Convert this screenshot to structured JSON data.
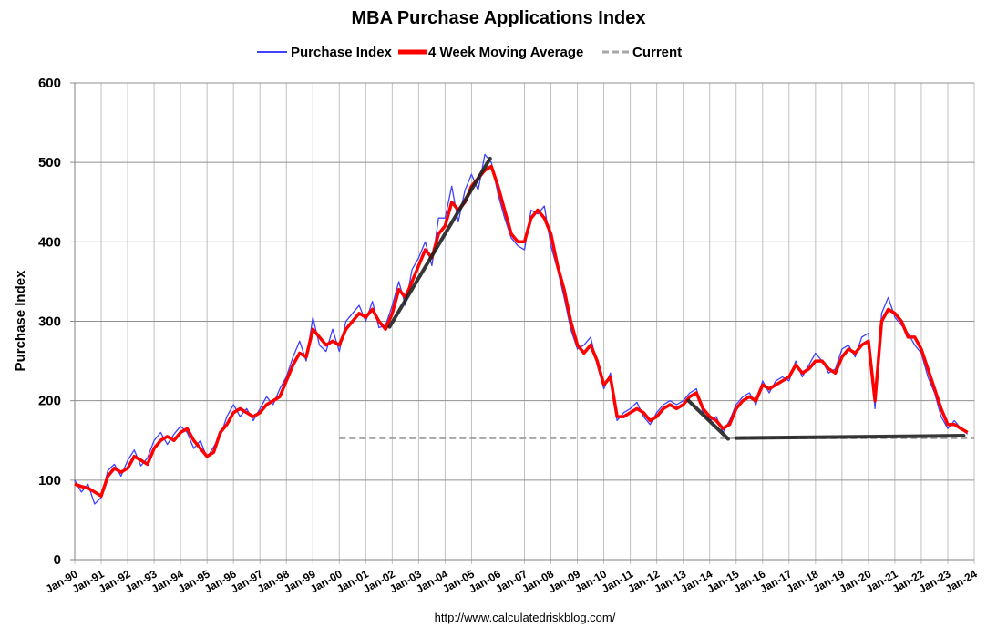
{
  "chart_data": {
    "type": "line",
    "title": "MBA Purchase Applications Index",
    "ylabel": "Purchase Index",
    "xlabel": "",
    "source": "http://www.calculatedriskblog.com/",
    "ylim": [
      0,
      600
    ],
    "yticks": [
      0,
      100,
      200,
      300,
      400,
      500,
      600
    ],
    "xlim": [
      1990,
      2024
    ],
    "xtick_labels": [
      "Jan-90",
      "Jan-91",
      "Jan-92",
      "Jan-93",
      "Jan-94",
      "Jan-95",
      "Jan-96",
      "Jan-97",
      "Jan-98",
      "Jan-99",
      "Jan-00",
      "Jan-01",
      "Jan-02",
      "Jan-03",
      "Jan-04",
      "Jan-05",
      "Jan-06",
      "Jan-07",
      "Jan-08",
      "Jan-09",
      "Jan-10",
      "Jan-11",
      "Jan-12",
      "Jan-13",
      "Jan-14",
      "Jan-15",
      "Jan-16",
      "Jan-17",
      "Jan-18",
      "Jan-19",
      "Jan-20",
      "Jan-21",
      "Jan-22",
      "Jan-23",
      "Jan-24"
    ],
    "grid": true,
    "legend_position": "top",
    "x_start": 1990,
    "x_step_years": 0.25,
    "series": [
      {
        "name": "Purchase Index",
        "color": "#4040ff",
        "values": [
          100,
          85,
          95,
          70,
          78,
          112,
          120,
          105,
          125,
          138,
          118,
          128,
          150,
          160,
          145,
          158,
          168,
          160,
          140,
          150,
          128,
          142,
          155,
          180,
          195,
          180,
          190,
          175,
          190,
          205,
          195,
          215,
          230,
          255,
          275,
          250,
          305,
          270,
          262,
          290,
          262,
          300,
          310,
          320,
          300,
          325,
          292,
          295,
          320,
          350,
          320,
          365,
          380,
          400,
          370,
          430,
          430,
          470,
          425,
          465,
          485,
          465,
          510,
          500,
          460,
          430,
          405,
          395,
          390,
          440,
          435,
          445,
          395,
          365,
          330,
          290,
          265,
          270,
          280,
          245,
          215,
          235,
          175,
          185,
          190,
          198,
          180,
          170,
          185,
          195,
          200,
          195,
          200,
          210,
          215,
          185,
          175,
          180,
          160,
          175,
          195,
          205,
          210,
          195,
          225,
          210,
          225,
          230,
          225,
          250,
          230,
          245,
          260,
          250,
          235,
          240,
          265,
          270,
          255,
          280,
          285,
          190,
          310,
          330,
          305,
          295,
          285,
          270,
          260,
          230,
          210,
          180,
          165,
          175,
          165,
          158
        ]
      },
      {
        "name": "4 Week Moving Average",
        "color": "#ff0000",
        "values": [
          95,
          92,
          90,
          85,
          80,
          105,
          115,
          110,
          115,
          130,
          125,
          120,
          140,
          150,
          155,
          150,
          160,
          165,
          150,
          140,
          130,
          135,
          160,
          170,
          185,
          190,
          185,
          180,
          185,
          195,
          200,
          205,
          225,
          245,
          260,
          255,
          290,
          280,
          270,
          275,
          270,
          290,
          300,
          310,
          305,
          315,
          300,
          290,
          310,
          340,
          330,
          350,
          370,
          390,
          380,
          410,
          420,
          450,
          440,
          450,
          470,
          480,
          490,
          495,
          470,
          440,
          410,
          400,
          400,
          430,
          440,
          430,
          410,
          370,
          340,
          300,
          270,
          260,
          270,
          250,
          220,
          230,
          180,
          180,
          185,
          190,
          185,
          175,
          180,
          190,
          195,
          190,
          195,
          205,
          210,
          190,
          180,
          175,
          165,
          170,
          190,
          200,
          205,
          200,
          220,
          215,
          220,
          225,
          230,
          245,
          235,
          240,
          250,
          250,
          240,
          235,
          255,
          265,
          260,
          270,
          275,
          200,
          300,
          315,
          310,
          300,
          280,
          280,
          265,
          240,
          215,
          190,
          170,
          170,
          165,
          160
        ]
      },
      {
        "name": "Current",
        "color": "#a6a6a6",
        "value": 153,
        "from": 2000,
        "to": 2024
      }
    ],
    "trend_lines": [
      {
        "from": [
          2001.9,
          293
        ],
        "to": [
          2005.7,
          505
        ]
      },
      {
        "from": [
          2013.2,
          200
        ],
        "to": [
          2014.7,
          152
        ]
      },
      {
        "from": [
          2015.0,
          153
        ],
        "to": [
          2023.6,
          156
        ]
      }
    ]
  }
}
